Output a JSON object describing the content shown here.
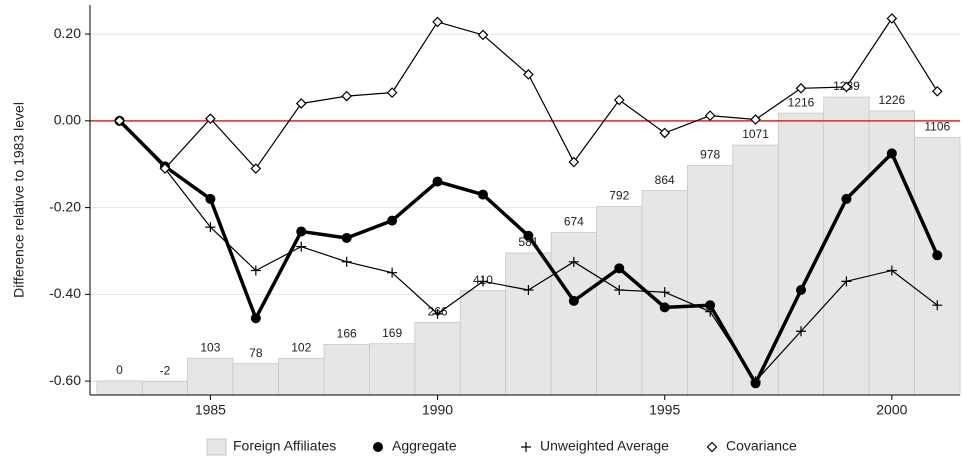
{
  "chart_data": {
    "type": "bar-line",
    "y_label": "Difference relative to 1983 level",
    "x": [
      1983,
      1984,
      1985,
      1986,
      1987,
      1988,
      1989,
      1990,
      1991,
      1992,
      1993,
      1994,
      1995,
      1996,
      1997,
      1998,
      1999,
      2000,
      2001
    ],
    "xlim": [
      1982.35,
      2001.5
    ],
    "xticks": [
      1985,
      1990,
      1995,
      2000
    ],
    "ylim": [
      -0.632,
      0.267
    ],
    "yticks": [
      {
        "value": 0.2,
        "label": "0.20"
      },
      {
        "value": 0,
        "label": "0.00"
      },
      {
        "value": -0.2,
        "label": "-0.20"
      },
      {
        "value": -0.4,
        "label": "-0.40"
      },
      {
        "value": -0.6,
        "label": "-0.60"
      }
    ],
    "y2lim": [
      -64,
      1707
    ],
    "grid": true,
    "reference_line": {
      "value": 0,
      "color": "#e8281e"
    },
    "series": [
      {
        "name": "Foreign Affiliates",
        "kind": "bar",
        "axis": "y2",
        "color": "#e6e6e6",
        "values": [
          0,
          -2,
          103,
          78,
          102,
          166,
          169,
          266,
          410,
          581,
          674,
          792,
          864,
          978,
          1071,
          1216,
          1289,
          1226,
          1106
        ]
      },
      {
        "name": "Aggregate",
        "kind": "line",
        "marker": "circle",
        "color": "#000000",
        "values": [
          0,
          -0.105,
          -0.18,
          -0.455,
          -0.255,
          -0.27,
          -0.23,
          -0.14,
          -0.17,
          -0.265,
          -0.415,
          -0.34,
          -0.43,
          -0.425,
          -0.605,
          -0.39,
          -0.18,
          -0.075,
          -0.31
        ]
      },
      {
        "name": "Unweighted Average",
        "kind": "line",
        "marker": "plus",
        "color": "#000000",
        "values": [
          0,
          -0.11,
          -0.245,
          -0.345,
          -0.29,
          -0.325,
          -0.35,
          -0.445,
          -0.37,
          -0.39,
          -0.325,
          -0.39,
          -0.395,
          -0.44,
          -0.6,
          -0.485,
          -0.37,
          -0.345,
          -0.425
        ]
      },
      {
        "name": "Covariance",
        "kind": "line",
        "marker": "diamond",
        "color": "#000000",
        "values": [
          0,
          -0.11,
          0.005,
          -0.11,
          0.04,
          0.057,
          0.065,
          0.228,
          0.198,
          0.107,
          -0.095,
          0.048,
          -0.028,
          0.012,
          0.003,
          0.075,
          0.078,
          0.236,
          0.068
        ]
      }
    ]
  }
}
